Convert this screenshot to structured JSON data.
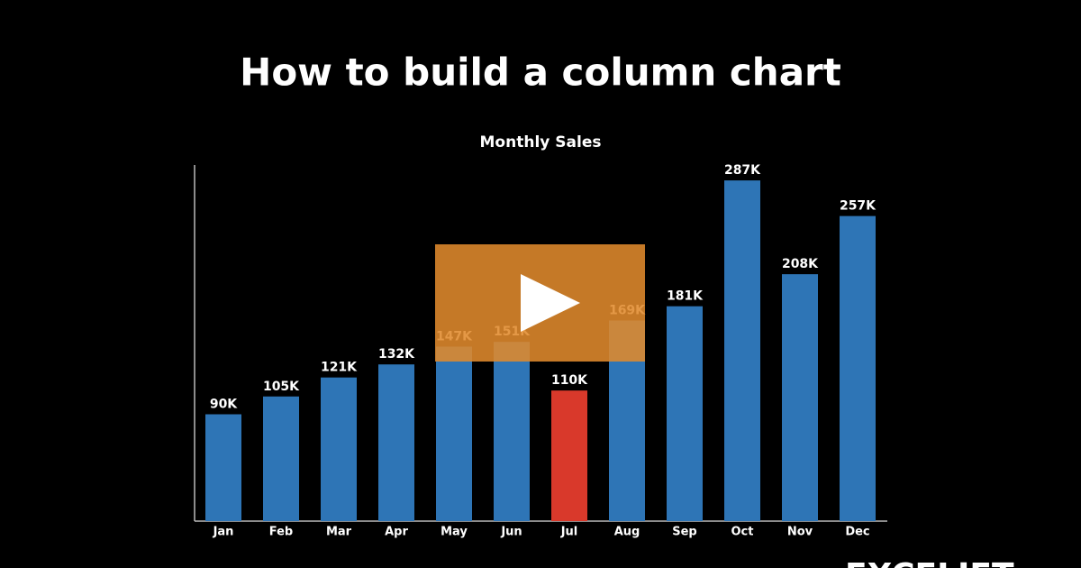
{
  "page_title": "How to build a column chart",
  "logo": "EXCELJET",
  "chart_data": {
    "type": "bar",
    "title": "Monthly Sales",
    "categories": [
      "Jan",
      "Feb",
      "Mar",
      "Apr",
      "May",
      "Jun",
      "Jul",
      "Aug",
      "Sep",
      "Oct",
      "Nov",
      "Dec"
    ],
    "values": [
      90,
      105,
      121,
      132,
      147,
      151,
      110,
      169,
      181,
      287,
      208,
      257
    ],
    "value_labels": [
      "90K",
      "105K",
      "121K",
      "132K",
      "147K",
      "151K",
      "110K",
      "169K",
      "181K",
      "287K",
      "208K",
      "257K"
    ],
    "colors": [
      "#2e75b6",
      "#2e75b6",
      "#2e75b6",
      "#2e75b6",
      "#2e75b6",
      "#2e75b6",
      "#d9392b",
      "#2e75b6",
      "#2e75b6",
      "#2e75b6",
      "#2e75b6",
      "#2e75b6"
    ],
    "ylim": [
      0,
      300
    ]
  }
}
